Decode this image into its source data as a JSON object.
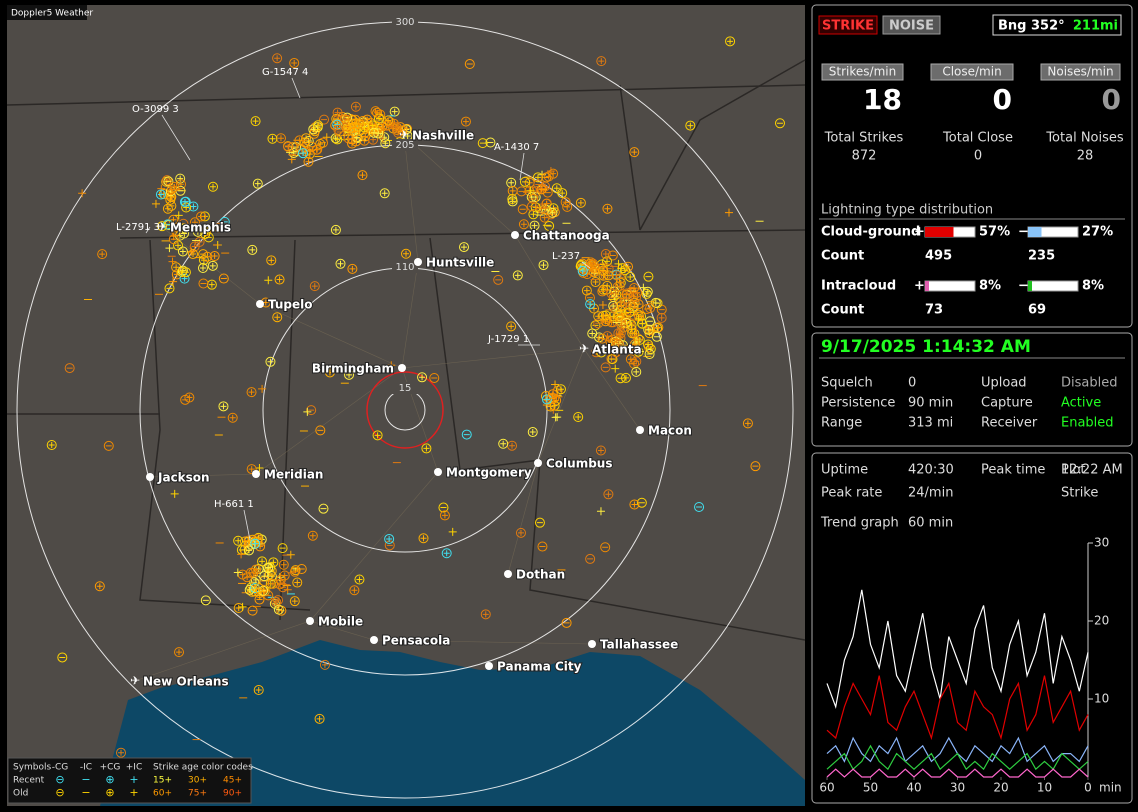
{
  "map": {
    "title": "Doppler5 Weather",
    "range_labels": [
      300,
      205,
      110,
      15
    ],
    "cities": [
      "Nashville",
      "Memphis",
      "Chattanooga",
      "Huntsville",
      "Tupelo",
      "Atlanta",
      "Birmingham",
      "Macon",
      "Jackson",
      "Meridian",
      "Montgomery",
      "Columbus",
      "Dothan",
      "Mobile",
      "Pensacola",
      "Tallahassee",
      "Panama City",
      "New Orleans"
    ],
    "storm_labels": [
      "G-1547 4",
      "O-3099 3",
      "A-1430 7",
      "L-2791 3",
      "L-237",
      "J-1729 1",
      "H-661 1"
    ]
  },
  "legend": {
    "symbols_label": "Symbols",
    "symbols": [
      "-CG",
      "-IC",
      "+CG",
      "+IC"
    ],
    "age_title": "Strike age color codes",
    "rows": [
      {
        "label": "Recent",
        "ages": [
          "15+",
          "30+",
          "45+"
        ]
      },
      {
        "label": "Old",
        "ages": [
          "60+",
          "75+",
          "90+"
        ]
      }
    ]
  },
  "header": {
    "buttons": [
      "STRIKE",
      "NOISE"
    ],
    "bearing": "Bng 352°",
    "distance": "211mi"
  },
  "rates": [
    {
      "label": "Strikes/min",
      "value": 18,
      "total_label": "Total Strikes",
      "total": 872
    },
    {
      "label": "Close/min",
      "value": 0,
      "total_label": "Total Close",
      "total": 0
    },
    {
      "label": "Noises/min",
      "value": 0,
      "total_label": "Total Noises",
      "total": 28
    }
  ],
  "distribution": {
    "title": "Lightning type distribution",
    "rows": [
      {
        "label": "Cloud-ground",
        "pos_sign": "+",
        "pos": 57,
        "pos_label": "57%",
        "neg_sign": "−",
        "neg": 27,
        "neg_label": "27%",
        "count_label": "Count",
        "pos_count": 495,
        "neg_count": 235
      },
      {
        "label": "Intracloud",
        "pos_sign": "+",
        "pos": 8,
        "pos_label": "8%",
        "neg_sign": "−",
        "neg": 8,
        "neg_label": "8%",
        "count_label": "Count",
        "pos_count": 73,
        "neg_count": 69
      }
    ]
  },
  "status": {
    "datetime": "9/17/2025 1:14:32 AM",
    "items": [
      {
        "label": "Squelch",
        "value": 0
      },
      {
        "label": "Upload",
        "value": "Disabled"
      },
      {
        "label": "Persistence",
        "value": "90 min"
      },
      {
        "label": "Capture",
        "value": "Active"
      },
      {
        "label": "Range",
        "value": "313 mi"
      },
      {
        "label": "Receiver",
        "value": "Enabled"
      }
    ]
  },
  "stats": {
    "items": [
      {
        "label": "Uptime",
        "value": "420:30"
      },
      {
        "label": "Peak time",
        "value": "12:22 AM"
      },
      {
        "label": "Plot",
        "value": "Strike"
      },
      {
        "label": "Peak rate",
        "value": "24/min"
      },
      {
        "label": "Trend graph",
        "value": "60 min"
      }
    ]
  },
  "chart_data": {
    "type": "line",
    "x_label": "min",
    "x": [
      60,
      58,
      56,
      54,
      52,
      50,
      48,
      46,
      44,
      42,
      40,
      38,
      36,
      34,
      32,
      30,
      28,
      26,
      24,
      22,
      20,
      18,
      16,
      14,
      12,
      10,
      8,
      6,
      4,
      2,
      0
    ],
    "xlim": [
      60,
      0
    ],
    "xticks": [
      60,
      50,
      40,
      30,
      20,
      10,
      0
    ],
    "ylim": [
      0,
      30
    ],
    "yticks": [
      10,
      20,
      30
    ],
    "series": [
      {
        "color": "#ffffff",
        "values": [
          12,
          9,
          15,
          18,
          24,
          17,
          14,
          20,
          13,
          11,
          16,
          21,
          14,
          10,
          18,
          15,
          12,
          19,
          22,
          14,
          11,
          17,
          20,
          13,
          16,
          21,
          12,
          18,
          15,
          11,
          16
        ]
      },
      {
        "color": "#e00000",
        "values": [
          6,
          5,
          9,
          12,
          10,
          8,
          13,
          7,
          6,
          9,
          11,
          8,
          5,
          10,
          12,
          7,
          6,
          11,
          9,
          8,
          5,
          10,
          12,
          6,
          8,
          13,
          7,
          9,
          11,
          6,
          8
        ]
      },
      {
        "color": "#8ab4f8",
        "values": [
          3,
          4,
          2,
          5,
          3,
          2,
          4,
          3,
          5,
          2,
          3,
          4,
          2,
          3,
          5,
          3,
          2,
          4,
          3,
          2,
          4,
          3,
          5,
          2,
          3,
          4,
          2,
          3,
          3,
          2,
          4
        ]
      },
      {
        "color": "#2ecc40",
        "values": [
          1,
          2,
          3,
          1,
          2,
          4,
          2,
          1,
          3,
          2,
          1,
          2,
          3,
          1,
          2,
          3,
          1,
          2,
          1,
          3,
          2,
          1,
          2,
          3,
          1,
          2,
          1,
          3,
          2,
          1,
          2
        ]
      },
      {
        "color": "#ff66cc",
        "values": [
          0,
          1,
          0,
          1,
          0,
          0,
          1,
          0,
          0,
          1,
          0,
          1,
          0,
          0,
          1,
          0,
          0,
          1,
          0,
          0,
          1,
          0,
          0,
          1,
          0,
          0,
          1,
          0,
          0,
          1,
          0
        ]
      }
    ]
  }
}
